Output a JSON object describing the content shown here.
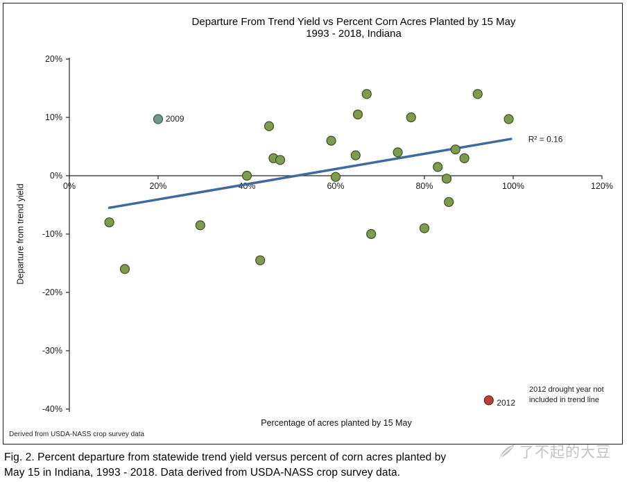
{
  "chart_data": {
    "type": "scatter",
    "title": "Departure From Trend Yield vs Percent Corn Acres Planted by 15 May",
    "subtitle": "1993 - 2018, Indiana",
    "xlabel": "Percentage of acres planted by 15 May",
    "ylabel": "Departure from trend yield",
    "xlim": [
      0,
      120
    ],
    "ylim": [
      -40,
      20
    ],
    "x_ticks": [
      0,
      20,
      40,
      60,
      80,
      100,
      120
    ],
    "y_ticks": [
      20,
      10,
      0,
      -10,
      -20,
      -30,
      -40
    ],
    "grid": false,
    "point_color": "#7d9c4d",
    "point_stroke": "#3d4b24",
    "points": [
      {
        "x": 9,
        "y": -8
      },
      {
        "x": 12.5,
        "y": -16
      },
      {
        "x": 20,
        "y": 9.7,
        "label": "2009",
        "color": "#6f9a8f",
        "stroke": "#40544e"
      },
      {
        "x": 29.5,
        "y": -8.5
      },
      {
        "x": 40,
        "y": 0
      },
      {
        "x": 43,
        "y": -14.5
      },
      {
        "x": 45,
        "y": 8.5
      },
      {
        "x": 46,
        "y": 3
      },
      {
        "x": 47.5,
        "y": 2.7
      },
      {
        "x": 59,
        "y": 6
      },
      {
        "x": 60,
        "y": -0.2
      },
      {
        "x": 64.5,
        "y": 3.5
      },
      {
        "x": 65,
        "y": 10.5
      },
      {
        "x": 67,
        "y": 14
      },
      {
        "x": 68,
        "y": -10
      },
      {
        "x": 74,
        "y": 4
      },
      {
        "x": 77,
        "y": 10
      },
      {
        "x": 80,
        "y": -9
      },
      {
        "x": 83,
        "y": 1.5
      },
      {
        "x": 85,
        "y": -0.5
      },
      {
        "x": 85.5,
        "y": -4.5
      },
      {
        "x": 87,
        "y": 4.5
      },
      {
        "x": 89,
        "y": 3
      },
      {
        "x": 92,
        "y": 14
      },
      {
        "x": 94.5,
        "y": -38.5,
        "label": "2012",
        "color": "#b5413c",
        "stroke": "#78221f"
      },
      {
        "x": 99,
        "y": 9.7
      }
    ],
    "trendline": {
      "x1": 9,
      "y1": -5.5,
      "x2": 99.5,
      "y2": 6.3,
      "color": "#3e6a9f",
      "r2": 0.16
    },
    "annotations": [
      {
        "name": "point-label-2009",
        "text": "2009",
        "x": 21.7,
        "y": 9.3,
        "size": 12
      },
      {
        "name": "point-label-2012",
        "text": "2012",
        "x": 96.3,
        "y": -39.4,
        "size": 12
      },
      {
        "name": "r-squared-label",
        "text": "R² = 0.16",
        "x": 103.4,
        "y": 5.8,
        "size": 12
      },
      {
        "name": "drought-note-line1",
        "text": "2012 drought year not",
        "x": 103.6,
        "y": -37.0,
        "size": 11
      },
      {
        "name": "drought-note-line2",
        "text": "included in trend line",
        "x": 103.6,
        "y": -38.8,
        "size": 11
      }
    ],
    "footnote": "Derived from USDA-NASS crop survey data"
  },
  "caption": {
    "line1": "Fig. 2. Percent departure from statewide trend yield versus percent of corn acres planted by",
    "line2": "May 15 in Indiana, 1993 - 2018. Data derived from USDA-NASS crop survey data."
  },
  "logo": {
    "text": "了不起的大豆"
  }
}
